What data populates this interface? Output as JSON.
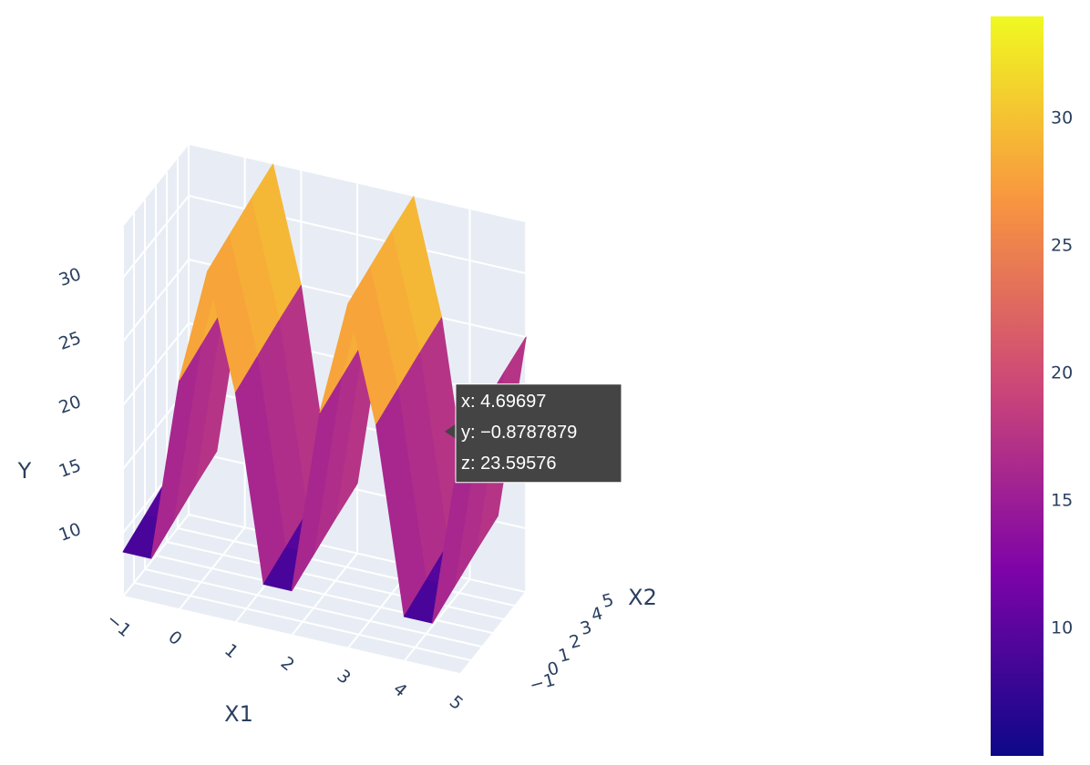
{
  "chart_data": {
    "type": "surface",
    "x_title": "X1",
    "y_title": "X2",
    "z_title": "Y",
    "x1": [
      -1,
      -0.5,
      0,
      0.5,
      1,
      1.5,
      2,
      2.5,
      3,
      3.5,
      4,
      4.5,
      5
    ],
    "x2": [
      -1,
      1,
      3,
      5
    ],
    "z": [
      [
        8.5,
        8.5,
        23,
        32,
        23,
        8.5,
        8.5,
        23,
        32,
        23,
        8.5,
        8.5,
        23
      ],
      [
        9.2,
        9.2,
        23.7,
        32.7,
        23.7,
        9.2,
        9.2,
        23.7,
        32.7,
        23.7,
        9.2,
        9.2,
        23.7
      ],
      [
        9.9,
        9.9,
        24.4,
        33.4,
        24.4,
        9.9,
        9.9,
        24.4,
        33.4,
        24.4,
        9.9,
        9.9,
        24.4
      ],
      [
        10.5,
        10.5,
        25,
        34,
        25,
        10.5,
        10.5,
        25,
        34,
        25,
        10.5,
        10.5,
        25
      ]
    ],
    "xlim": [
      -1,
      5
    ],
    "ylim": [
      -1,
      5
    ],
    "zlim": [
      5,
      34
    ],
    "xticks": [
      {
        "value": -1,
        "label": "−1"
      },
      0,
      1,
      2,
      3,
      4,
      5
    ],
    "yticks": [
      {
        "value": -1,
        "label": "−1"
      },
      0,
      1,
      2,
      3,
      4,
      5
    ],
    "zticks": [
      10,
      15,
      20,
      25,
      30
    ],
    "colorscale": [
      "#0d0887",
      "#7e03a8",
      "#cc4778",
      "#f89540",
      "#f0f921"
    ],
    "clim": [
      5,
      34
    ],
    "cticks": [
      10,
      15,
      20,
      25,
      30
    ],
    "hover": {
      "x": 4.69697,
      "y": -0.8787879,
      "z": 23.59576,
      "value_labels": [
        "x: 4.69697",
        "y: −0.8787879",
        "z: 23.59576"
      ]
    }
  }
}
